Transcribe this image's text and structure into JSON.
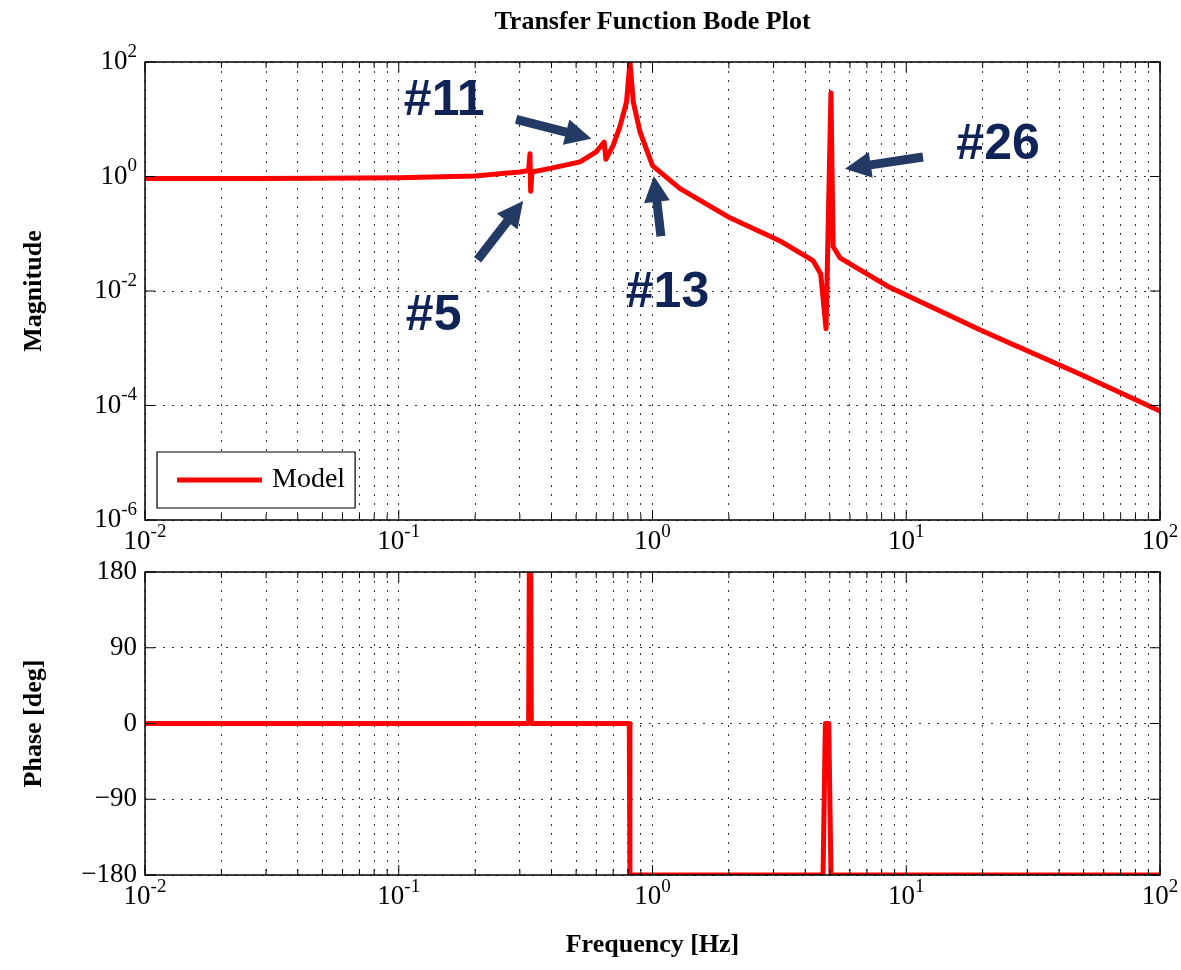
{
  "chart_data": [
    {
      "type": "line",
      "title": "Transfer Function Bode Plot",
      "ylabel": "Magnitude",
      "x": [
        0.01,
        0.05,
        0.1,
        0.2,
        0.3,
        0.325,
        0.329,
        0.331,
        0.335,
        0.4,
        0.518,
        0.6,
        0.645,
        0.655,
        0.7,
        0.745,
        0.79,
        0.815,
        0.84,
        0.893,
        1.0,
        1.28,
        2.02,
        3.18,
        4.29,
        4.6,
        4.83,
        5.05,
        5.1,
        5.15,
        5.48,
        8.6,
        19.5,
        50,
        100
      ],
      "series": [
        {
          "name": "Model",
          "color": "#ff0000",
          "values": [
            0.92,
            0.93,
            0.95,
            1.02,
            1.2,
            1.27,
            2.5,
            0.55,
            1.2,
            1.4,
            1.8,
            2.7,
            4.0,
            2.0,
            3.5,
            7.6,
            20,
            100,
            20,
            6,
            1.55,
            0.62,
            0.19,
            0.075,
            0.034,
            0.02,
            0.0022,
            29,
            1.27,
            0.06,
            0.038,
            0.0116,
            0.0021,
            0.00033,
            8e-05
          ]
        }
      ],
      "log": "xy",
      "xlim": [
        0.01,
        100
      ],
      "ylim": [
        1e-06,
        100
      ],
      "xticks": [
        {
          "value": 0.01,
          "label": "10$^{-2}$"
        },
        {
          "value": 0.02,
          "label": null
        },
        {
          "value": 0.03,
          "label": null
        },
        {
          "value": 0.04,
          "label": null
        },
        {
          "value": 0.05,
          "label": null
        },
        {
          "value": 0.06,
          "label": null
        },
        {
          "value": 0.07,
          "label": null
        },
        {
          "value": 0.08,
          "label": null
        },
        {
          "value": 0.09,
          "label": null
        },
        {
          "value": 0.1,
          "label": "10$^{-1}$"
        },
        {
          "value": 0.2,
          "label": null
        },
        {
          "value": 0.3,
          "label": null
        },
        {
          "value": 0.4,
          "label": null
        },
        {
          "value": 0.5,
          "label": null
        },
        {
          "value": 0.6,
          "label": null
        },
        {
          "value": 0.7,
          "label": null
        },
        {
          "value": 0.8,
          "label": null
        },
        {
          "value": 0.9,
          "label": null
        },
        {
          "value": 1,
          "label": "10$^{0}$"
        },
        {
          "value": 2,
          "label": null
        },
        {
          "value": 3,
          "label": null
        },
        {
          "value": 4,
          "label": null
        },
        {
          "value": 5,
          "label": null
        },
        {
          "value": 6,
          "label": null
        },
        {
          "value": 7,
          "label": null
        },
        {
          "value": 8,
          "label": null
        },
        {
          "value": 9,
          "label": null
        },
        {
          "value": 10,
          "label": "10$^{1}$"
        },
        {
          "value": 20,
          "label": null
        },
        {
          "value": 30,
          "label": null
        },
        {
          "value": 40,
          "label": null
        },
        {
          "value": 50,
          "label": null
        },
        {
          "value": 60,
          "label": null
        },
        {
          "value": 70,
          "label": null
        },
        {
          "value": 80,
          "label": null
        },
        {
          "value": 90,
          "label": null
        },
        {
          "value": 100,
          "label": "10$^{2}$"
        }
      ],
      "yticks": [
        {
          "value": 1e-06,
          "label": "10$^{-6}$"
        },
        {
          "value": 0.0001,
          "label": "10$^{-4}$"
        },
        {
          "value": 0.01,
          "label": "10$^{-2}$"
        },
        {
          "value": 1,
          "label": "10$^{0}$"
        },
        {
          "value": 100,
          "label": "10$^{2}$"
        }
      ],
      "grid": true,
      "legend": "bottom left",
      "annotations": [
        {
          "text": "#5",
          "x": 0.331,
          "y": 0.55
        },
        {
          "text": "#11",
          "x": 0.645,
          "y": 4.0
        },
        {
          "text": "#13",
          "x": 1.0,
          "y": 1.55
        },
        {
          "text": "#26",
          "x": 5.1,
          "y": 1.27
        }
      ]
    },
    {
      "type": "line",
      "xlabel": "Frequency [Hz]",
      "ylabel": "Phase [deg]",
      "x": [
        0.01,
        0.325,
        0.327,
        0.331,
        0.333,
        0.81,
        0.815,
        4.7,
        4.8,
        4.95,
        5.05,
        100
      ],
      "series": [
        {
          "color": "#ff0000",
          "values": [
            0,
            0,
            180,
            180,
            0,
            0,
            -180,
            -180,
            0,
            0,
            -180,
            -180
          ]
        }
      ],
      "log": "x",
      "xlim": [
        0.01,
        100
      ],
      "ylim": [
        -180,
        180
      ],
      "xticks": [
        {
          "value": 0.01,
          "label": "10$^{-2}$"
        },
        {
          "value": 0.02,
          "label": null
        },
        {
          "value": 0.03,
          "label": null
        },
        {
          "value": 0.04,
          "label": null
        },
        {
          "value": 0.05,
          "label": null
        },
        {
          "value": 0.06,
          "label": null
        },
        {
          "value": 0.07,
          "label": null
        },
        {
          "value": 0.08,
          "label": null
        },
        {
          "value": 0.09,
          "label": null
        },
        {
          "value": 0.1,
          "label": "10$^{-1}$"
        },
        {
          "value": 0.2,
          "label": null
        },
        {
          "value": 0.3,
          "label": null
        },
        {
          "value": 0.4,
          "label": null
        },
        {
          "value": 0.5,
          "label": null
        },
        {
          "value": 0.6,
          "label": null
        },
        {
          "value": 0.7,
          "label": null
        },
        {
          "value": 0.8,
          "label": null
        },
        {
          "value": 0.9,
          "label": null
        },
        {
          "value": 1,
          "label": "10$^{0}$"
        },
        {
          "value": 2,
          "label": null
        },
        {
          "value": 3,
          "label": null
        },
        {
          "value": 4,
          "label": null
        },
        {
          "value": 5,
          "label": null
        },
        {
          "value": 6,
          "label": null
        },
        {
          "value": 7,
          "label": null
        },
        {
          "value": 8,
          "label": null
        },
        {
          "value": 9,
          "label": null
        },
        {
          "value": 10,
          "label": "10$^{1}$"
        },
        {
          "value": 20,
          "label": null
        },
        {
          "value": 30,
          "label": null
        },
        {
          "value": 40,
          "label": null
        },
        {
          "value": 50,
          "label": null
        },
        {
          "value": 60,
          "label": null
        },
        {
          "value": 70,
          "label": null
        },
        {
          "value": 80,
          "label": null
        },
        {
          "value": 90,
          "label": null
        },
        {
          "value": 100,
          "label": "10$^{2}$"
        }
      ],
      "yticks": [
        {
          "value": -180,
          "label": "−180"
        },
        {
          "value": -90,
          "label": "−90"
        },
        0,
        90,
        180
      ],
      "grid": true
    }
  ]
}
